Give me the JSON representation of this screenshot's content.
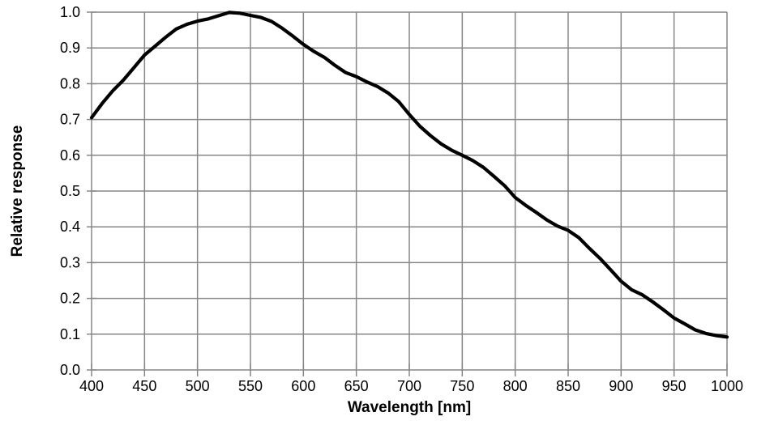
{
  "chart_data": {
    "type": "line",
    "title": "",
    "xlabel": "Wavelength [nm]",
    "ylabel": "Relative response",
    "xlim": [
      400,
      1000
    ],
    "ylim": [
      0.0,
      1.0
    ],
    "x_tick_labels": [
      "400",
      "450",
      "500",
      "550",
      "600",
      "650",
      "700",
      "750",
      "800",
      "850",
      "900",
      "950",
      "1000"
    ],
    "x_tick_values": [
      400,
      450,
      500,
      550,
      600,
      650,
      700,
      750,
      800,
      850,
      900,
      950,
      1000
    ],
    "y_tick_labels": [
      "0.0",
      "0.1",
      "0.2",
      "0.3",
      "0.4",
      "0.5",
      "0.6",
      "0.7",
      "0.8",
      "0.9",
      "1.0"
    ],
    "y_tick_values": [
      0.0,
      0.1,
      0.2,
      0.3,
      0.4,
      0.5,
      0.6,
      0.7,
      0.8,
      0.9,
      1.0
    ],
    "grid": true,
    "legend": false,
    "series": [
      {
        "name": "relative-response",
        "x": [
          400,
          410,
          420,
          430,
          440,
          450,
          460,
          470,
          480,
          490,
          500,
          510,
          520,
          530,
          540,
          550,
          560,
          570,
          580,
          590,
          600,
          610,
          620,
          630,
          640,
          650,
          660,
          670,
          680,
          690,
          700,
          710,
          720,
          730,
          740,
          750,
          760,
          770,
          780,
          790,
          800,
          810,
          820,
          830,
          840,
          850,
          860,
          870,
          880,
          890,
          900,
          910,
          920,
          930,
          940,
          950,
          960,
          970,
          980,
          990,
          1000
        ],
        "y": [
          0.705,
          0.745,
          0.78,
          0.81,
          0.845,
          0.88,
          0.905,
          0.93,
          0.953,
          0.966,
          0.975,
          0.981,
          0.99,
          0.999,
          0.997,
          0.991,
          0.985,
          0.974,
          0.955,
          0.933,
          0.91,
          0.89,
          0.873,
          0.851,
          0.831,
          0.82,
          0.805,
          0.792,
          0.774,
          0.75,
          0.714,
          0.681,
          0.655,
          0.632,
          0.614,
          0.6,
          0.585,
          0.566,
          0.541,
          0.515,
          0.482,
          0.46,
          0.44,
          0.419,
          0.402,
          0.39,
          0.37,
          0.34,
          0.312,
          0.28,
          0.248,
          0.224,
          0.21,
          0.19,
          0.168,
          0.145,
          0.129,
          0.112,
          0.102,
          0.096,
          0.092
        ]
      }
    ],
    "colors": {
      "curve": "#000000",
      "grid": "#878787",
      "text": "#000000",
      "background": "#ffffff"
    }
  }
}
